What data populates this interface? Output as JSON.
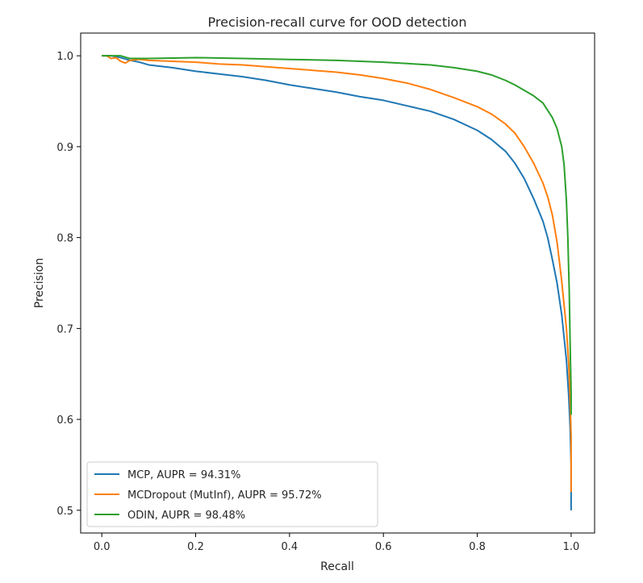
{
  "chart_data": {
    "type": "line",
    "title": "Precision-recall curve for OOD detection",
    "xlabel": "Recall",
    "ylabel": "Precision",
    "xlim": [
      -0.045,
      1.05
    ],
    "ylim": [
      0.475,
      1.025
    ],
    "xticks": [
      0.0,
      0.2,
      0.4,
      0.6,
      0.8,
      1.0
    ],
    "xtick_labels": [
      "0.0",
      "0.2",
      "0.4",
      "0.6",
      "0.8",
      "1.0"
    ],
    "yticks": [
      0.5,
      0.6,
      0.7,
      0.8,
      0.9,
      1.0
    ],
    "ytick_labels": [
      "0.5",
      "0.6",
      "0.7",
      "0.8",
      "0.9",
      "1.0"
    ],
    "grid": false,
    "legend_position": "lower-left",
    "series": [
      {
        "name": "MCP, AUPR = 94.31%",
        "color": "#1f77b4",
        "x": [
          0.0,
          0.02,
          0.04,
          0.06,
          0.08,
          0.1,
          0.15,
          0.2,
          0.25,
          0.3,
          0.35,
          0.4,
          0.45,
          0.5,
          0.55,
          0.6,
          0.65,
          0.7,
          0.75,
          0.8,
          0.83,
          0.86,
          0.88,
          0.9,
          0.92,
          0.94,
          0.95,
          0.96,
          0.97,
          0.98,
          0.99,
          0.995,
          0.998,
          1.0,
          1.0
        ],
        "y": [
          1.0,
          1.0,
          0.998,
          0.995,
          0.993,
          0.99,
          0.987,
          0.983,
          0.98,
          0.977,
          0.973,
          0.968,
          0.964,
          0.96,
          0.955,
          0.951,
          0.945,
          0.939,
          0.93,
          0.918,
          0.908,
          0.895,
          0.882,
          0.865,
          0.843,
          0.818,
          0.8,
          0.776,
          0.75,
          0.715,
          0.665,
          0.625,
          0.59,
          0.55,
          0.5
        ]
      },
      {
        "name": "MCDropout (MutInf), AUPR = 95.72%",
        "color": "#ff7f0e",
        "x": [
          0.0,
          0.01,
          0.02,
          0.03,
          0.04,
          0.05,
          0.06,
          0.08,
          0.1,
          0.15,
          0.2,
          0.25,
          0.3,
          0.35,
          0.4,
          0.45,
          0.5,
          0.55,
          0.6,
          0.65,
          0.7,
          0.75,
          0.8,
          0.83,
          0.86,
          0.88,
          0.9,
          0.92,
          0.94,
          0.95,
          0.96,
          0.97,
          0.98,
          0.99,
          0.995,
          0.998,
          1.0,
          1.0
        ],
        "y": [
          1.0,
          1.0,
          0.997,
          0.998,
          0.994,
          0.992,
          0.995,
          0.996,
          0.995,
          0.994,
          0.993,
          0.991,
          0.99,
          0.988,
          0.986,
          0.984,
          0.982,
          0.979,
          0.975,
          0.97,
          0.963,
          0.954,
          0.944,
          0.936,
          0.925,
          0.915,
          0.9,
          0.882,
          0.86,
          0.845,
          0.825,
          0.795,
          0.752,
          0.7,
          0.66,
          0.62,
          0.58,
          0.52
        ]
      },
      {
        "name": "ODIN, AUPR = 98.48%",
        "color": "#2ca02c",
        "x": [
          0.0,
          0.02,
          0.04,
          0.06,
          0.08,
          0.1,
          0.2,
          0.3,
          0.4,
          0.5,
          0.6,
          0.7,
          0.75,
          0.8,
          0.83,
          0.86,
          0.88,
          0.9,
          0.92,
          0.94,
          0.95,
          0.96,
          0.97,
          0.98,
          0.985,
          0.99,
          0.993,
          0.996,
          0.998,
          1.0,
          1.0
        ],
        "y": [
          1.0,
          1.0,
          1.0,
          0.997,
          0.997,
          0.997,
          0.998,
          0.997,
          0.996,
          0.995,
          0.993,
          0.99,
          0.987,
          0.983,
          0.979,
          0.973,
          0.968,
          0.962,
          0.956,
          0.948,
          0.94,
          0.932,
          0.92,
          0.9,
          0.88,
          0.84,
          0.8,
          0.74,
          0.68,
          0.63,
          0.605
        ]
      }
    ]
  }
}
